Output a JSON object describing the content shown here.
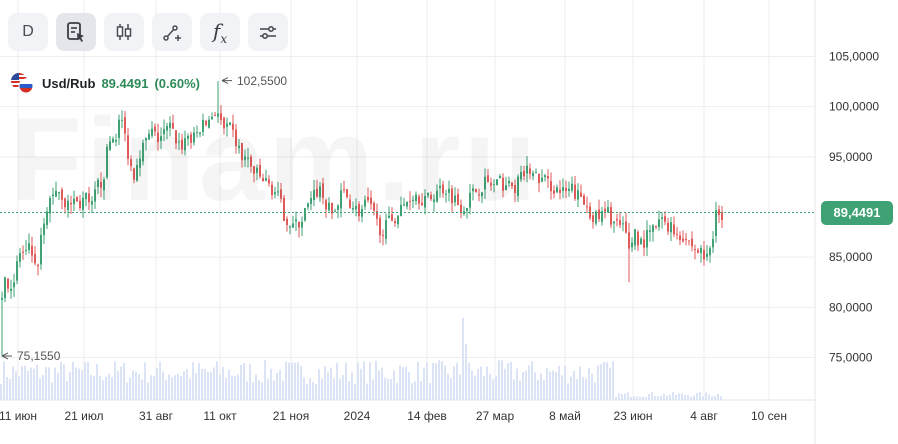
{
  "toolbar": {
    "period_label": "D",
    "buttons": [
      {
        "name": "timeframe-button",
        "icon": "letter-d"
      },
      {
        "name": "trade-tool-button",
        "icon": "document-cursor-icon"
      },
      {
        "name": "candles-button",
        "icon": "candlestick-icon"
      },
      {
        "name": "drawing-tool-button",
        "icon": "line-plus-icon"
      },
      {
        "name": "indicators-button",
        "icon": "function-icon"
      },
      {
        "name": "settings-button",
        "icon": "sliders-icon"
      }
    ],
    "fx_label": "f",
    "fx_sub": "x"
  },
  "legend": {
    "symbol": "Usd/Rub",
    "last_price": "89.4491",
    "change": "(0.60%)",
    "flag_icon": "usd-rub-flags-icon"
  },
  "watermark": "Finam.ru",
  "current_price_tag": "89,4491",
  "high_marker": "102,5500",
  "low_marker": "75,1550",
  "colors": {
    "up": "#3fa274",
    "down": "#e05a5a",
    "volume": "#dbe4f7",
    "price_line": "#3fa274",
    "grid": "#eeeeee"
  },
  "chart_data": {
    "type": "candlestick",
    "x_ticks": [
      "11 июн",
      "21 июл",
      "31 авг",
      "11 окт",
      "21 ноя",
      "2024",
      "14 фев",
      "27 мар",
      "8 май",
      "23 июн",
      "4 авг",
      "10 сен"
    ],
    "y_ticks": [
      "105,0000",
      "100,0000",
      "95,0000",
      "85,0000",
      "80,0000",
      "75,0000"
    ],
    "ylim": [
      72.8,
      108.6
    ],
    "current_price": 89.4491,
    "high": 102.55,
    "low": 75.155,
    "grid": true,
    "series": [
      {
        "values": [
          [
            0,
            81.0
          ],
          [
            6,
            82.8
          ],
          [
            12,
            82.0
          ],
          [
            18,
            85.5
          ],
          [
            24,
            85.0
          ],
          [
            30,
            86.0
          ],
          [
            36,
            82.5
          ],
          [
            40,
            87.0
          ],
          [
            44,
            88.0
          ],
          [
            48,
            90.5
          ],
          [
            54,
            92.0
          ],
          [
            60,
            91.5
          ],
          [
            66,
            90.0
          ],
          [
            72,
            90.8
          ],
          [
            78,
            90.2
          ],
          [
            84,
            91.0
          ],
          [
            90,
            89.5
          ],
          [
            96,
            92.0
          ],
          [
            102,
            92.8
          ],
          [
            108,
            96.5
          ],
          [
            114,
            97.0
          ],
          [
            120,
            99.0
          ],
          [
            126,
            96.0
          ],
          [
            132,
            93.0
          ],
          [
            138,
            95.5
          ],
          [
            144,
            96.2
          ],
          [
            150,
            97.5
          ],
          [
            156,
            96.8
          ],
          [
            162,
            97.2
          ],
          [
            168,
            98.0
          ],
          [
            174,
            97.0
          ],
          [
            180,
            96.0
          ],
          [
            186,
            97.2
          ],
          [
            192,
            96.5
          ],
          [
            198,
            97.8
          ],
          [
            204,
            98.2
          ],
          [
            210,
            99.0
          ],
          [
            216,
            99.8
          ],
          [
            222,
            97.5
          ],
          [
            228,
            97.8
          ],
          [
            234,
            96.8
          ],
          [
            240,
            95.0
          ],
          [
            246,
            94.8
          ],
          [
            252,
            93.5
          ],
          [
            258,
            93.0
          ],
          [
            264,
            92.5
          ],
          [
            270,
            92.0
          ],
          [
            276,
            91.2
          ],
          [
            282,
            89.5
          ],
          [
            288,
            88.5
          ],
          [
            294,
            88.0
          ],
          [
            300,
            88.7
          ],
          [
            306,
            89.8
          ],
          [
            312,
            90.8
          ],
          [
            318,
            92.0
          ],
          [
            324,
            90.5
          ],
          [
            330,
            89.2
          ],
          [
            336,
            90.0
          ],
          [
            342,
            91.5
          ],
          [
            348,
            90.8
          ],
          [
            354,
            89.8
          ],
          [
            360,
            89.5
          ],
          [
            366,
            90.5
          ],
          [
            372,
            89.2
          ],
          [
            378,
            88.0
          ],
          [
            384,
            87.8
          ],
          [
            390,
            88.8
          ],
          [
            396,
            89.2
          ],
          [
            402,
            90.0
          ],
          [
            408,
            91.0
          ],
          [
            414,
            91.4
          ],
          [
            420,
            91.0
          ],
          [
            426,
            90.6
          ],
          [
            432,
            91.2
          ],
          [
            438,
            91.8
          ],
          [
            444,
            92.0
          ],
          [
            450,
            91.3
          ],
          [
            456,
            90.5
          ],
          [
            462,
            90.0
          ],
          [
            468,
            90.8
          ],
          [
            474,
            91.6
          ],
          [
            480,
            92.2
          ],
          [
            486,
            92.5
          ],
          [
            492,
            92.0
          ],
          [
            498,
            92.3
          ],
          [
            504,
            92.4
          ],
          [
            510,
            91.8
          ],
          [
            516,
            92.2
          ],
          [
            522,
            93.2
          ],
          [
            528,
            93.8
          ],
          [
            534,
            93.0
          ],
          [
            540,
            92.7
          ],
          [
            546,
            92.5
          ],
          [
            552,
            92.0
          ],
          [
            558,
            91.6
          ],
          [
            564,
            91.2
          ],
          [
            570,
            91.8
          ],
          [
            576,
            91.2
          ],
          [
            582,
            90.5
          ],
          [
            588,
            89.8
          ],
          [
            594,
            88.8
          ],
          [
            600,
            89.0
          ],
          [
            606,
            89.5
          ],
          [
            612,
            88.7
          ],
          [
            618,
            88.0
          ],
          [
            624,
            87.5
          ],
          [
            628,
            86.0
          ],
          [
            634,
            87.5
          ],
          [
            640,
            86.3
          ],
          [
            646,
            87.0
          ],
          [
            652,
            87.6
          ],
          [
            658,
            88.4
          ],
          [
            664,
            88.6
          ],
          [
            670,
            88.0
          ],
          [
            676,
            87.4
          ],
          [
            682,
            87.2
          ],
          [
            688,
            86.5
          ],
          [
            694,
            85.8
          ],
          [
            700,
            85.5
          ],
          [
            706,
            84.8
          ],
          [
            712,
            87.0
          ],
          [
            716,
            91.5
          ],
          [
            718,
            89.5
          ],
          [
            722,
            88.2
          ]
        ]
      }
    ]
  }
}
